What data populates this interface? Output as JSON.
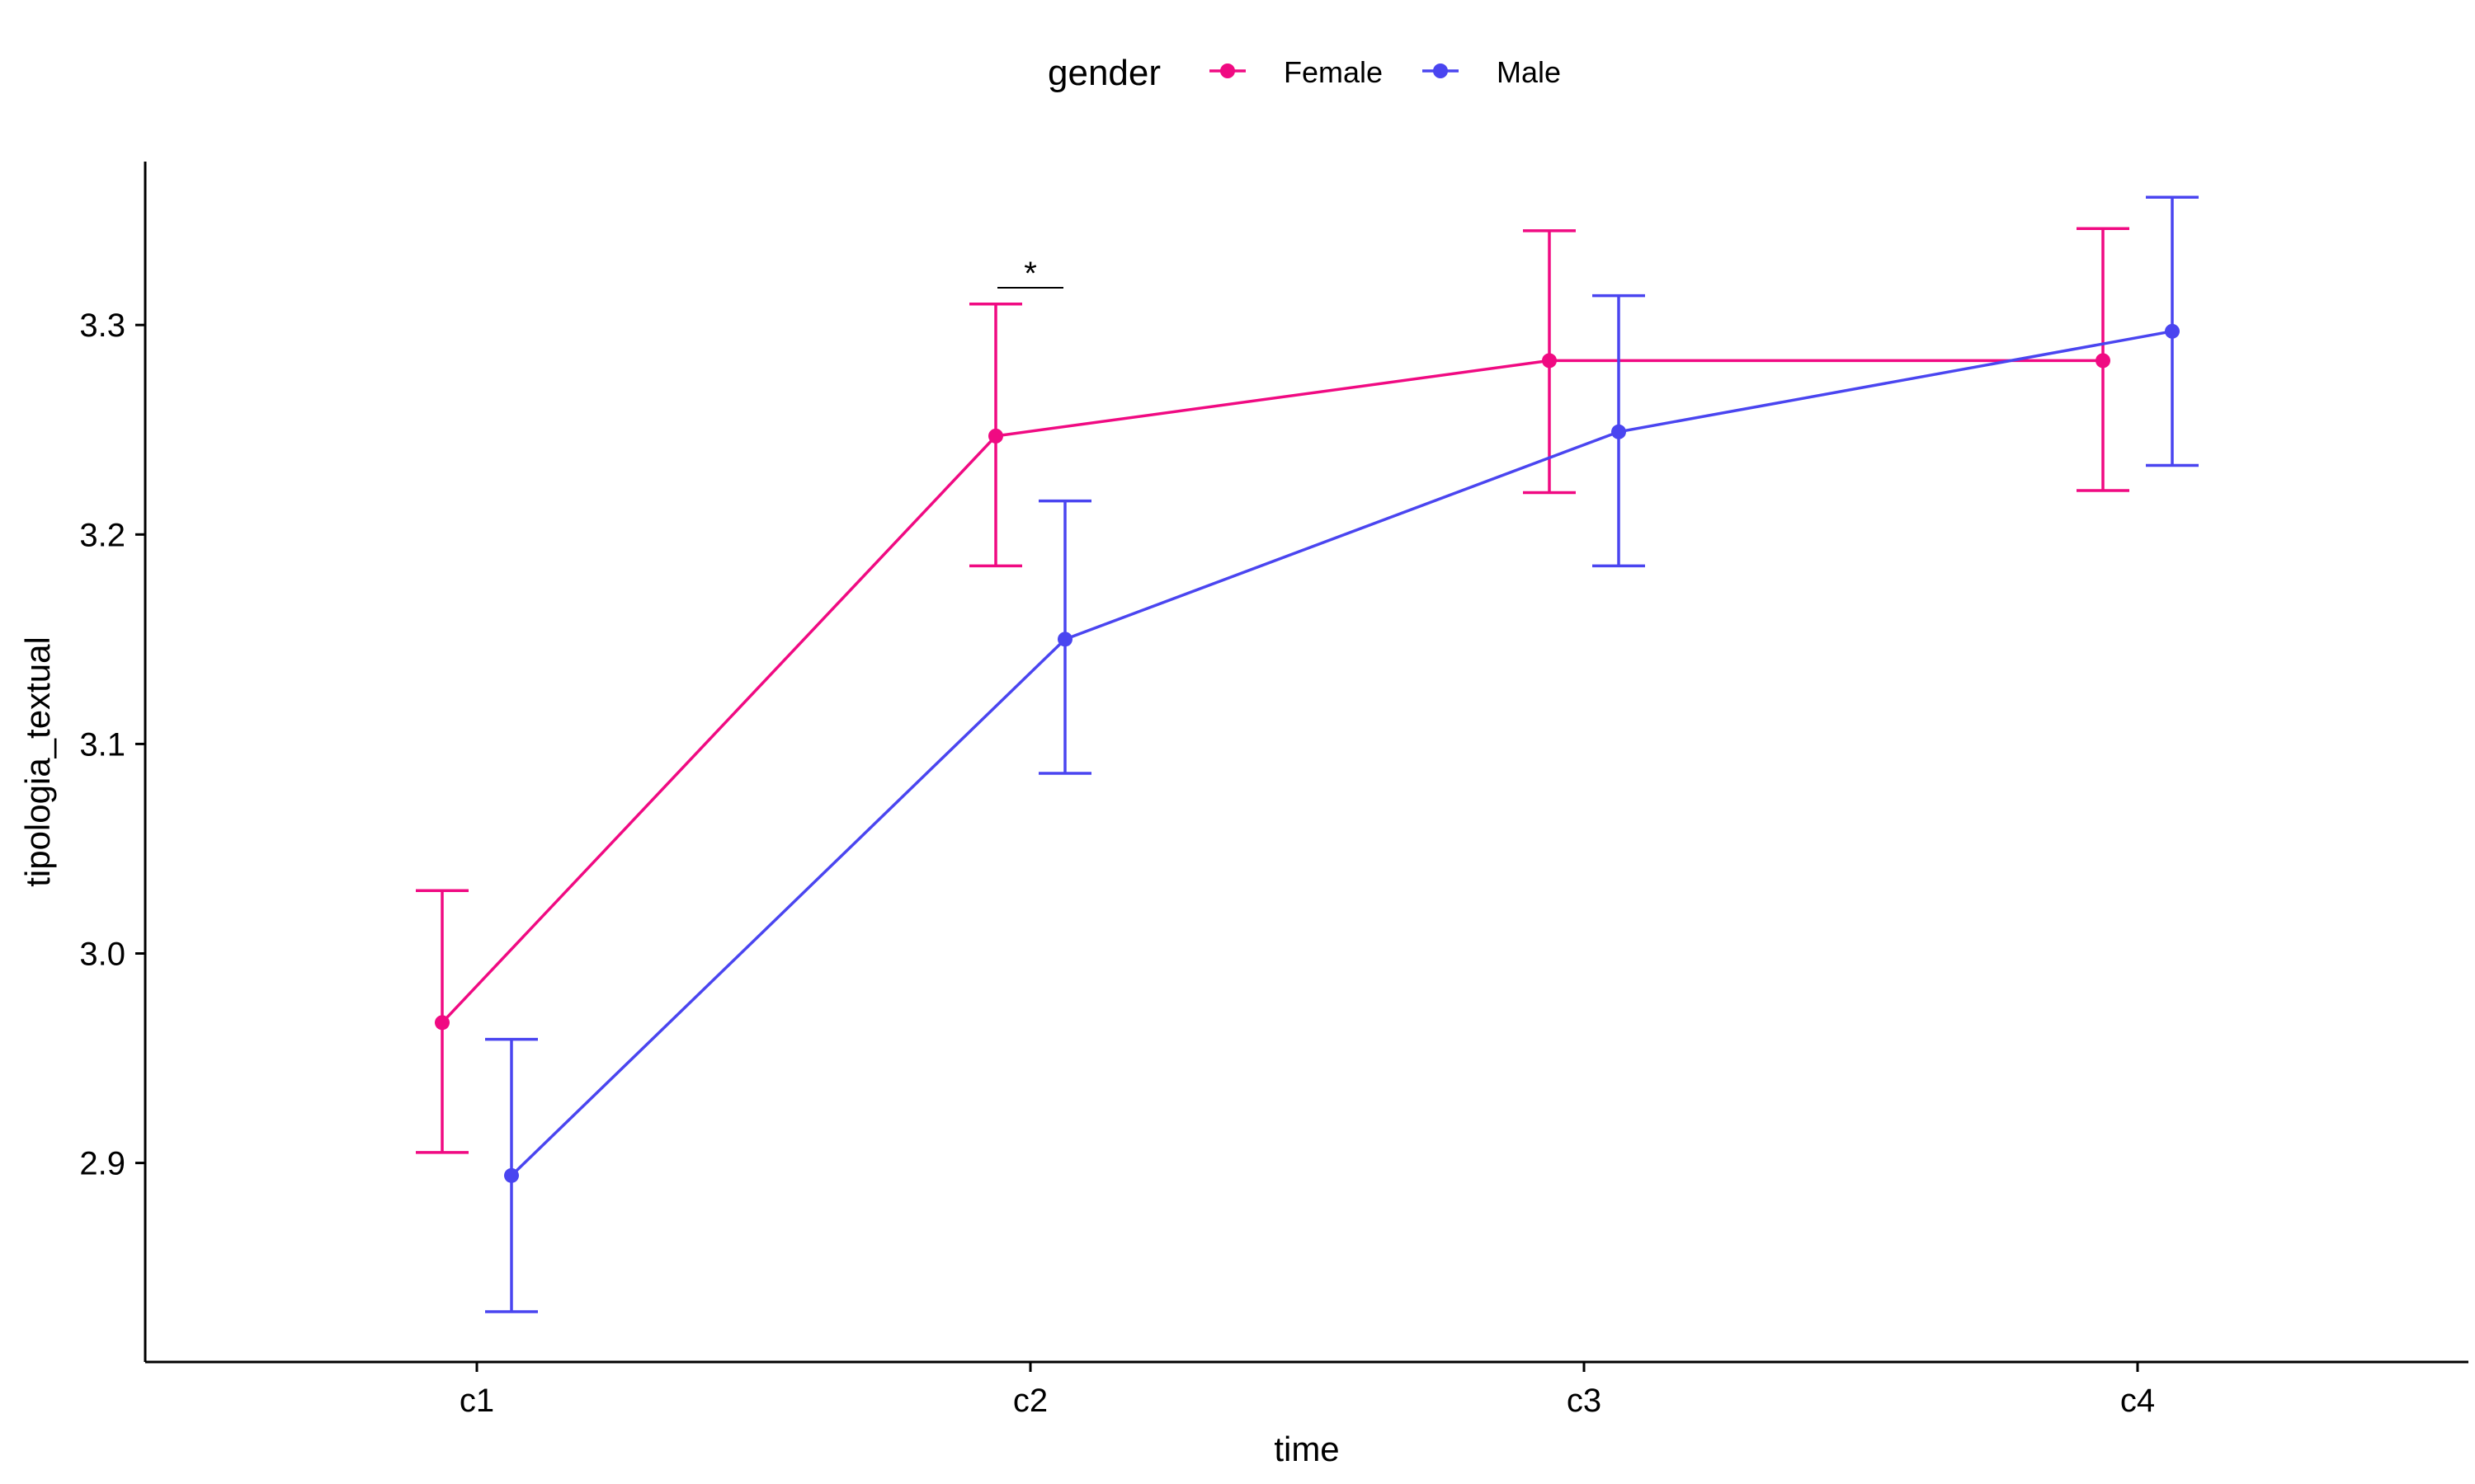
{
  "chart_data": {
    "type": "line",
    "xlabel": "time",
    "ylabel": "tipologia_textual",
    "categories": [
      "c1",
      "c2",
      "c3",
      "c4"
    ],
    "ylim": [
      2.805,
      3.378
    ],
    "yticks": [
      2.9,
      3.0,
      3.1,
      3.2,
      3.3
    ],
    "ytick_labels": [
      "2.9",
      "3.0",
      "3.1",
      "3.2",
      "3.3"
    ],
    "grid": false,
    "legend": {
      "title": "gender",
      "position": "top",
      "entries": [
        "Female",
        "Male"
      ]
    },
    "series": [
      {
        "name": "Female",
        "color": "#F00A82",
        "values": [
          2.967,
          3.247,
          3.283,
          3.283
        ],
        "error_low": [
          2.905,
          3.185,
          3.22,
          3.221
        ],
        "error_high": [
          3.03,
          3.31,
          3.345,
          3.346
        ]
      },
      {
        "name": "Male",
        "color": "#4A45F0",
        "values": [
          2.894,
          3.15,
          3.249,
          3.297
        ],
        "error_low": [
          2.829,
          3.086,
          3.185,
          3.233
        ],
        "error_high": [
          2.959,
          3.216,
          3.314,
          3.361
        ]
      }
    ],
    "annotations": [
      {
        "label": "*",
        "category": "c2"
      }
    ]
  }
}
